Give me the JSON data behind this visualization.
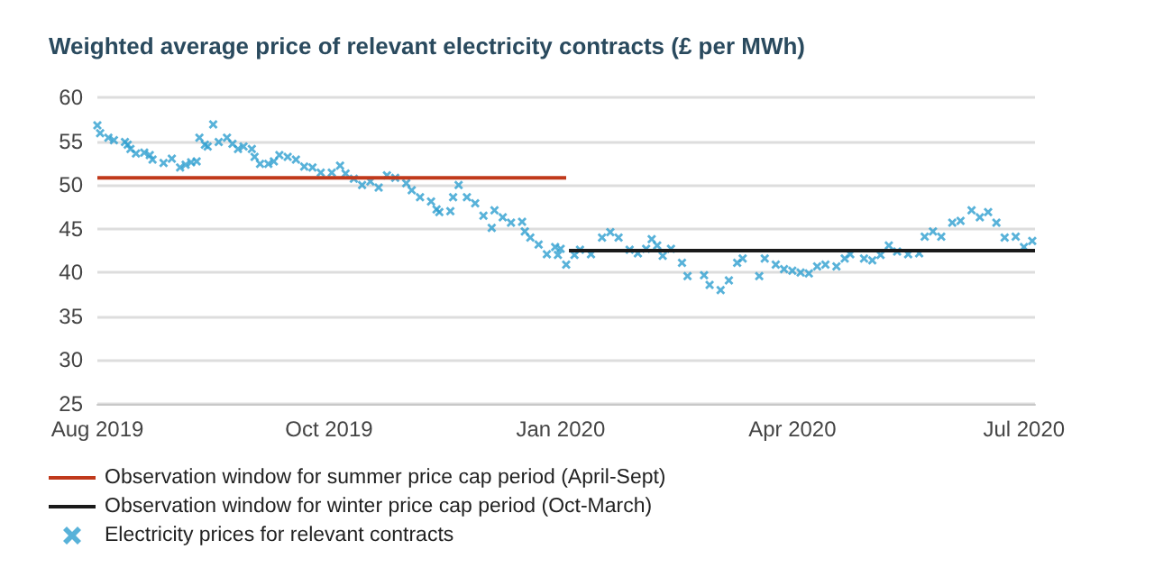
{
  "chart_data": {
    "type": "scatter",
    "title": "Weighted average price of relevant electricity contracts (£ per MWh)",
    "xlim": [
      "2019-08-01",
      "2020-07-06"
    ],
    "xticks": [
      {
        "value": "2019-08-01",
        "label": "Aug 2019"
      },
      {
        "value": "2019-10-24",
        "label": "Oct 2019"
      },
      {
        "value": "2020-01-16",
        "label": "Jan 2020"
      },
      {
        "value": "2020-04-09",
        "label": "Apr 2020"
      },
      {
        "value": "2020-07-02",
        "label": "Jul 2020"
      }
    ],
    "ylim": [
      25,
      60
    ],
    "yticks": [
      25,
      30,
      35,
      40,
      45,
      50,
      55,
      60
    ],
    "grid": "y",
    "legend": "bottom",
    "series": [
      {
        "type": "line",
        "name": "Observation window for summer price cap period (April-Sept)",
        "color": "#c0391b",
        "marker": "none",
        "x": [
          "2019-08-01",
          "2020-01-18"
        ],
        "values": [
          50.8,
          50.8
        ]
      },
      {
        "type": "line",
        "name": "Observation window for winter price cap period (Oct-March)",
        "color": "#1a1a1a",
        "marker": "none",
        "x": [
          "2020-01-19",
          "2020-07-06"
        ],
        "values": [
          42.5,
          42.5
        ]
      },
      {
        "name": "Electricity prices for relevant contracts",
        "color": "#2e9fcf",
        "marker": "cross",
        "x": [
          "2019-08-01",
          "2019-08-02",
          "2019-08-05",
          "2019-08-07",
          "2019-08-11",
          "2019-08-12",
          "2019-08-13",
          "2019-08-15",
          "2019-08-18",
          "2019-08-20",
          "2019-08-21",
          "2019-08-25",
          "2019-08-28",
          "2019-08-31",
          "2019-09-02",
          "2019-09-04",
          "2019-09-06",
          "2019-09-07",
          "2019-09-09",
          "2019-09-10",
          "2019-09-12",
          "2019-09-14",
          "2019-09-17",
          "2019-09-19",
          "2019-09-21",
          "2019-09-23",
          "2019-09-26",
          "2019-09-27",
          "2019-09-29",
          "2019-10-02",
          "2019-10-04",
          "2019-10-06",
          "2019-10-09",
          "2019-10-12",
          "2019-10-15",
          "2019-10-18",
          "2019-10-21",
          "2019-10-25",
          "2019-10-28",
          "2019-10-30",
          "2019-11-02",
          "2019-11-05",
          "2019-11-08",
          "2019-11-11",
          "2019-11-14",
          "2019-11-17",
          "2019-11-21",
          "2019-11-23",
          "2019-11-26",
          "2019-11-30",
          "2019-12-02",
          "2019-12-03",
          "2019-12-07",
          "2019-12-08",
          "2019-12-10",
          "2019-12-13",
          "2019-12-16",
          "2019-12-19",
          "2019-12-22",
          "2019-12-23",
          "2019-12-26",
          "2019-12-29",
          "2020-01-02",
          "2020-01-03",
          "2020-01-05",
          "2020-01-08",
          "2020-01-11",
          "2020-01-14",
          "2020-01-15",
          "2020-01-16",
          "2020-01-18",
          "2020-01-21",
          "2020-01-23",
          "2020-01-27",
          "2020-01-31",
          "2020-02-03",
          "2020-02-06",
          "2020-02-10",
          "2020-02-13",
          "2020-02-16",
          "2020-02-18",
          "2020-02-20",
          "2020-02-22",
          "2020-02-25",
          "2020-02-29",
          "2020-03-02",
          "2020-03-08",
          "2020-03-10",
          "2020-03-14",
          "2020-03-17",
          "2020-03-20",
          "2020-03-22",
          "2020-03-28",
          "2020-03-30",
          "2020-04-03",
          "2020-04-06",
          "2020-04-09",
          "2020-04-12",
          "2020-04-15",
          "2020-04-18",
          "2020-04-21",
          "2020-04-25",
          "2020-04-28",
          "2020-04-30",
          "2020-05-05",
          "2020-05-08",
          "2020-05-11",
          "2020-05-14",
          "2020-05-17",
          "2020-05-21",
          "2020-05-25",
          "2020-05-27",
          "2020-05-30",
          "2020-06-02",
          "2020-06-06",
          "2020-06-09",
          "2020-06-13",
          "2020-06-16",
          "2020-06-19",
          "2020-06-22",
          "2020-06-25",
          "2020-06-29",
          "2020-07-02",
          "2020-07-05"
        ],
        "values": [
          56.8,
          55.9,
          55.4,
          55.1,
          54.9,
          54.6,
          54.1,
          53.6,
          53.7,
          53.4,
          52.9,
          52.5,
          53.0,
          52.0,
          52.3,
          52.6,
          52.7,
          55.4,
          54.6,
          54.4,
          56.9,
          54.9,
          55.4,
          54.7,
          54.1,
          54.4,
          54.1,
          53.2,
          52.4,
          52.4,
          52.7,
          53.4,
          53.2,
          52.9,
          52.1,
          52.0,
          51.4,
          51.4,
          52.2,
          51.3,
          50.7,
          50.0,
          50.4,
          49.7,
          51.1,
          50.8,
          50.2,
          49.4,
          48.6,
          48.1,
          47.2,
          46.9,
          47.0,
          48.6,
          50.0,
          48.6,
          47.9,
          46.5,
          45.1,
          47.1,
          46.3,
          45.7,
          45.8,
          44.7,
          44.0,
          43.2,
          42.1,
          42.9,
          42.0,
          42.7,
          40.9,
          42.0,
          42.6,
          42.1,
          44.0,
          44.6,
          44.0,
          42.6,
          42.2,
          42.7,
          43.8,
          43.1,
          41.9,
          42.7,
          41.1,
          39.6,
          39.7,
          38.6,
          38.0,
          39.1,
          41.1,
          41.6,
          39.6,
          41.6,
          40.9,
          40.4,
          40.2,
          40.0,
          39.9,
          40.7,
          40.9,
          40.7,
          41.6,
          42.1,
          41.6,
          41.4,
          42.0,
          43.1,
          42.4,
          42.1,
          42.2,
          44.1,
          44.7,
          44.1,
          45.7,
          45.9,
          47.1,
          46.3,
          46.9,
          45.7,
          44.0,
          44.1,
          42.9,
          43.6
        ]
      }
    ]
  }
}
